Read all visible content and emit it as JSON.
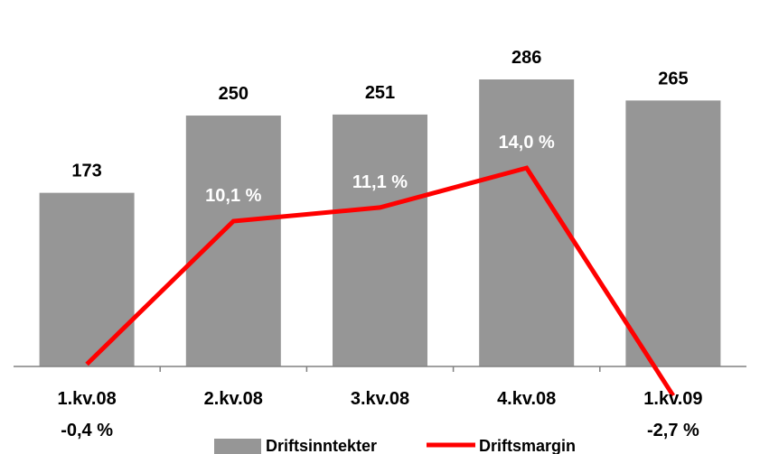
{
  "chart_data": {
    "type": "bar",
    "categories": [
      "1.kv.08",
      "2.kv.08",
      "3.kv.08",
      "4.kv.08",
      "1.kv.09"
    ],
    "series": [
      {
        "name": "Driftsinntekter",
        "type": "bar",
        "values": [
          173,
          250,
          251,
          286,
          265
        ],
        "labels": [
          "173",
          "250",
          "251",
          "286",
          "265"
        ]
      },
      {
        "name": "Driftsmargin",
        "type": "line",
        "values": [
          -0.4,
          10.1,
          11.1,
          14.0,
          -2.7
        ],
        "labels": [
          "-0,4 %",
          "10,1 %",
          "11,1 %",
          "14,0 %",
          "-2,7 %"
        ]
      }
    ],
    "title": "",
    "xlabel": "",
    "ylabel": "",
    "legend_position": "bottom",
    "grid": false,
    "bar_ylim": [
      0,
      320
    ],
    "line_ylim": [
      -2.0,
      24.0
    ],
    "colors": {
      "bar": "#969696",
      "line": "#ff0000",
      "axis": "#808080"
    }
  }
}
